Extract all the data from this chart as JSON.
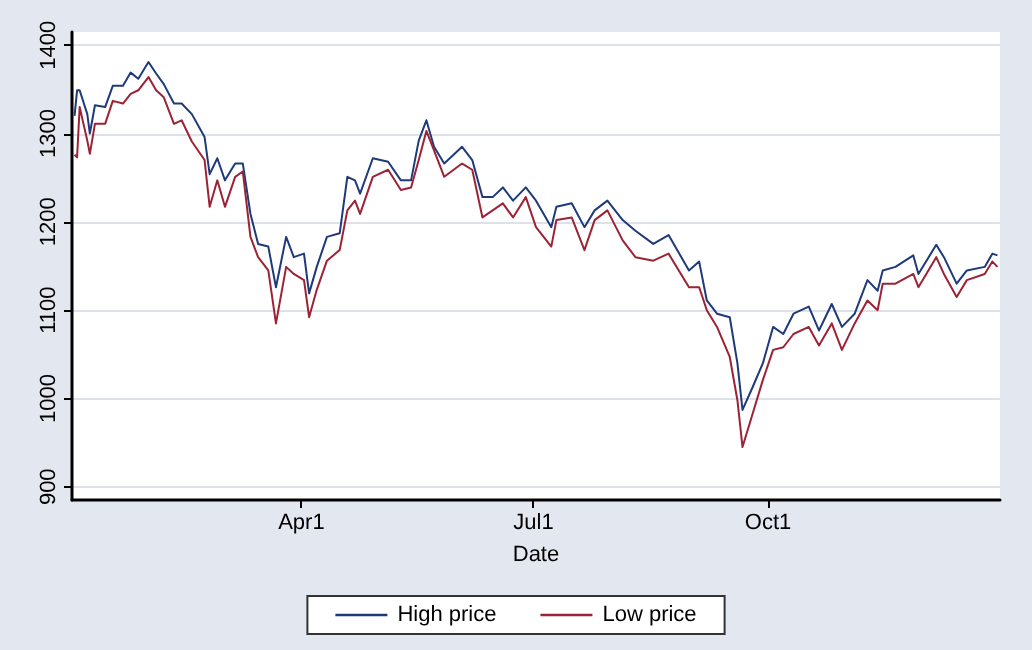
{
  "chart_data": {
    "type": "line",
    "xlabel": "Date",
    "x": [
      "--01-02",
      "--01-03",
      "--01-04",
      "--01-07",
      "--01-08",
      "--01-10",
      "--01-14",
      "--01-17",
      "--01-21",
      "--01-24",
      "--01-27",
      "--01-31",
      "--02-03",
      "--02-06",
      "--02-10",
      "--02-13",
      "--02-17",
      "--02-22",
      "--02-24",
      "--02-27",
      "--03-02",
      "--03-06",
      "--03-09",
      "--03-12",
      "--03-15",
      "--03-19",
      "--03-22",
      "--03-26",
      "--03-29",
      "--04-02",
      "--04-04",
      "--04-07",
      "--04-11",
      "--04-16",
      "--04-19",
      "--04-22",
      "--04-24",
      "--04-29",
      "--05-05",
      "--05-10",
      "--05-14",
      "--05-17",
      "--05-20",
      "--05-23",
      "--05-27",
      "--06-03",
      "--06-07",
      "--06-11",
      "--06-15",
      "--06-19",
      "--06-23",
      "--06-28",
      "--07-02",
      "--07-08",
      "--07-10",
      "--07-16",
      "--07-21",
      "--07-25",
      "--07-30",
      "--08-05",
      "--08-10",
      "--08-17",
      "--08-23",
      "--08-31",
      "--09-04",
      "--09-07",
      "--09-11",
      "--09-16",
      "--09-19",
      "--09-21",
      "--09-25",
      "--09-29",
      "--10-03",
      "--10-07",
      "--10-11",
      "--10-17",
      "--10-21",
      "--10-26",
      "--10-30",
      "--11-04",
      "--11-09",
      "--11-13",
      "--11-15",
      "--11-20",
      "--11-27",
      "--11-29",
      "--12-06",
      "--12-09",
      "--12-14",
      "--12-18",
      "--12-25",
      "--12-28",
      "--12-30"
    ],
    "series": [
      {
        "name": "High price",
        "color": "#1f3a7a",
        "values": [
          1320,
          1349,
          1349,
          1322,
          1300,
          1332,
          1330,
          1354,
          1354,
          1369,
          1362,
          1381,
          1368,
          1356,
          1334,
          1334,
          1322,
          1296,
          1254,
          1272,
          1247,
          1266,
          1266,
          1209,
          1175,
          1172,
          1126,
          1183,
          1160,
          1164,
          1119,
          1149,
          1183,
          1187,
          1251,
          1247,
          1232,
          1272,
          1268,
          1247,
          1247,
          1292,
          1315,
          1285,
          1266,
          1285,
          1270,
          1228,
          1228,
          1239,
          1224,
          1239,
          1224,
          1194,
          1217,
          1221,
          1194,
          1213,
          1224,
          1202,
          1190,
          1175,
          1185,
          1145,
          1155,
          1111,
          1096,
          1092,
          1040,
          987,
          1013,
          1040,
          1081,
          1073,
          1096,
          1104,
          1077,
          1107,
          1081,
          1096,
          1134,
          1122,
          1145,
          1149,
          1162,
          1141,
          1174,
          1160,
          1130,
          1145,
          1149,
          1164,
          1162
        ]
      },
      {
        "name": "Low price",
        "color": "#9b2335",
        "values": [
          1276,
          1273,
          1330,
          1292,
          1277,
          1311,
          1311,
          1337,
          1334,
          1345,
          1349,
          1364,
          1349,
          1341,
          1311,
          1315,
          1291,
          1270,
          1217,
          1247,
          1217,
          1251,
          1257,
          1183,
          1160,
          1145,
          1085,
          1149,
          1141,
          1134,
          1092,
          1123,
          1156,
          1168,
          1213,
          1224,
          1209,
          1251,
          1259,
          1236,
          1239,
          1270,
          1303,
          1281,
          1251,
          1266,
          1259,
          1205,
          1213,
          1221,
          1205,
          1228,
          1194,
          1172,
          1202,
          1205,
          1168,
          1202,
          1213,
          1179,
          1160,
          1156,
          1164,
          1126,
          1126,
          1100,
          1081,
          1047,
          998,
          945,
          983,
          1021,
          1055,
          1058,
          1073,
          1081,
          1060,
          1085,
          1055,
          1085,
          1111,
          1100,
          1130,
          1130,
          1141,
          1126,
          1160,
          1141,
          1115,
          1134,
          1141,
          1155,
          1149
        ]
      }
    ],
    "xlim": [
      "--01-01",
      "--12-31"
    ],
    "xticks": [
      {
        "value": "--04-01",
        "label": "Apr1"
      },
      {
        "value": "--07-01",
        "label": "Jul1"
      },
      {
        "value": "--10-01",
        "label": "Oct1"
      }
    ],
    "ylim": [
      885,
      1415
    ],
    "yticks": [
      900,
      1000,
      1100,
      1200,
      1300,
      1400
    ],
    "grid": "y",
    "legend": "bottom"
  }
}
